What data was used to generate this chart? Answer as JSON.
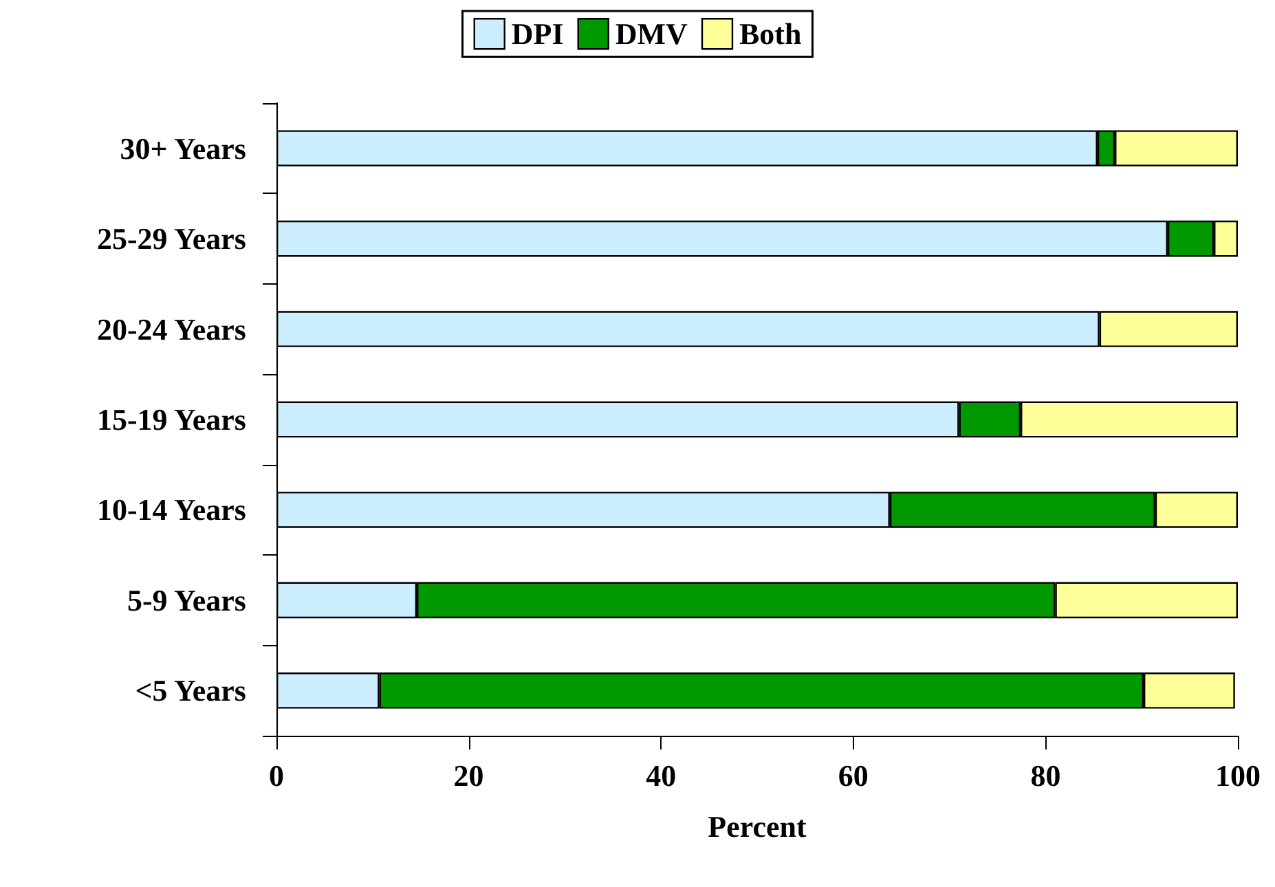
{
  "chart_data": {
    "type": "bar",
    "orientation": "horizontal",
    "stacked": true,
    "xlabel": "Percent",
    "legend": "top",
    "grid": false,
    "categories": [
      "30+ Years",
      "25-29 Years",
      "20-24 Years",
      "15-19 Years",
      "10-14 Years",
      "5-9 Years",
      "<5 Years"
    ],
    "series": [
      {
        "name": "DPI",
        "color": "#cceeff",
        "values": [
          85.4,
          92.7,
          85.6,
          71.0,
          63.8,
          14.6,
          10.7
        ]
      },
      {
        "name": "DMV",
        "color": "#009900",
        "values": [
          1.8,
          4.8,
          null,
          6.4,
          27.6,
          66.4,
          79.5
        ]
      },
      {
        "name": "Both",
        "color": "#ffff99",
        "values": [
          12.8,
          2.5,
          14.4,
          22.6,
          8.6,
          19.0,
          9.5
        ]
      }
    ],
    "xlim": [
      0,
      100
    ],
    "xticks": [
      0,
      20,
      40,
      60,
      80,
      100
    ]
  }
}
